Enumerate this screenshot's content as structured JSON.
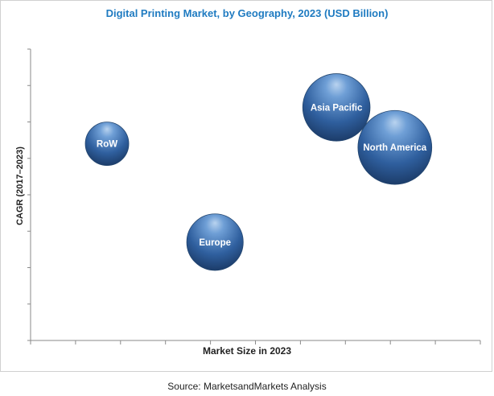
{
  "chart_data": {
    "type": "scatter",
    "subtype": "bubble",
    "title": "Digital Printing Market, by Geography, 2023 (USD Billion)",
    "xlabel": "Market Size in 2023",
    "ylabel": "CAGR (2017–2023)",
    "xlim": [
      0,
      10
    ],
    "ylim": [
      0,
      8
    ],
    "x_ticks": 10,
    "y_ticks": 8,
    "grid": false,
    "legend": "none",
    "bubble_color": "#2f5f9e",
    "points": [
      {
        "label": "RoW",
        "x": 1.7,
        "y": 5.4,
        "size": 1.0
      },
      {
        "label": "Europe",
        "x": 4.1,
        "y": 2.7,
        "size": 1.3
      },
      {
        "label": "Asia Pacific",
        "x": 6.8,
        "y": 6.4,
        "size": 1.55
      },
      {
        "label": "North America",
        "x": 8.1,
        "y": 5.3,
        "size": 1.7
      }
    ]
  },
  "source": "Source: MarketsandMarkets Analysis"
}
